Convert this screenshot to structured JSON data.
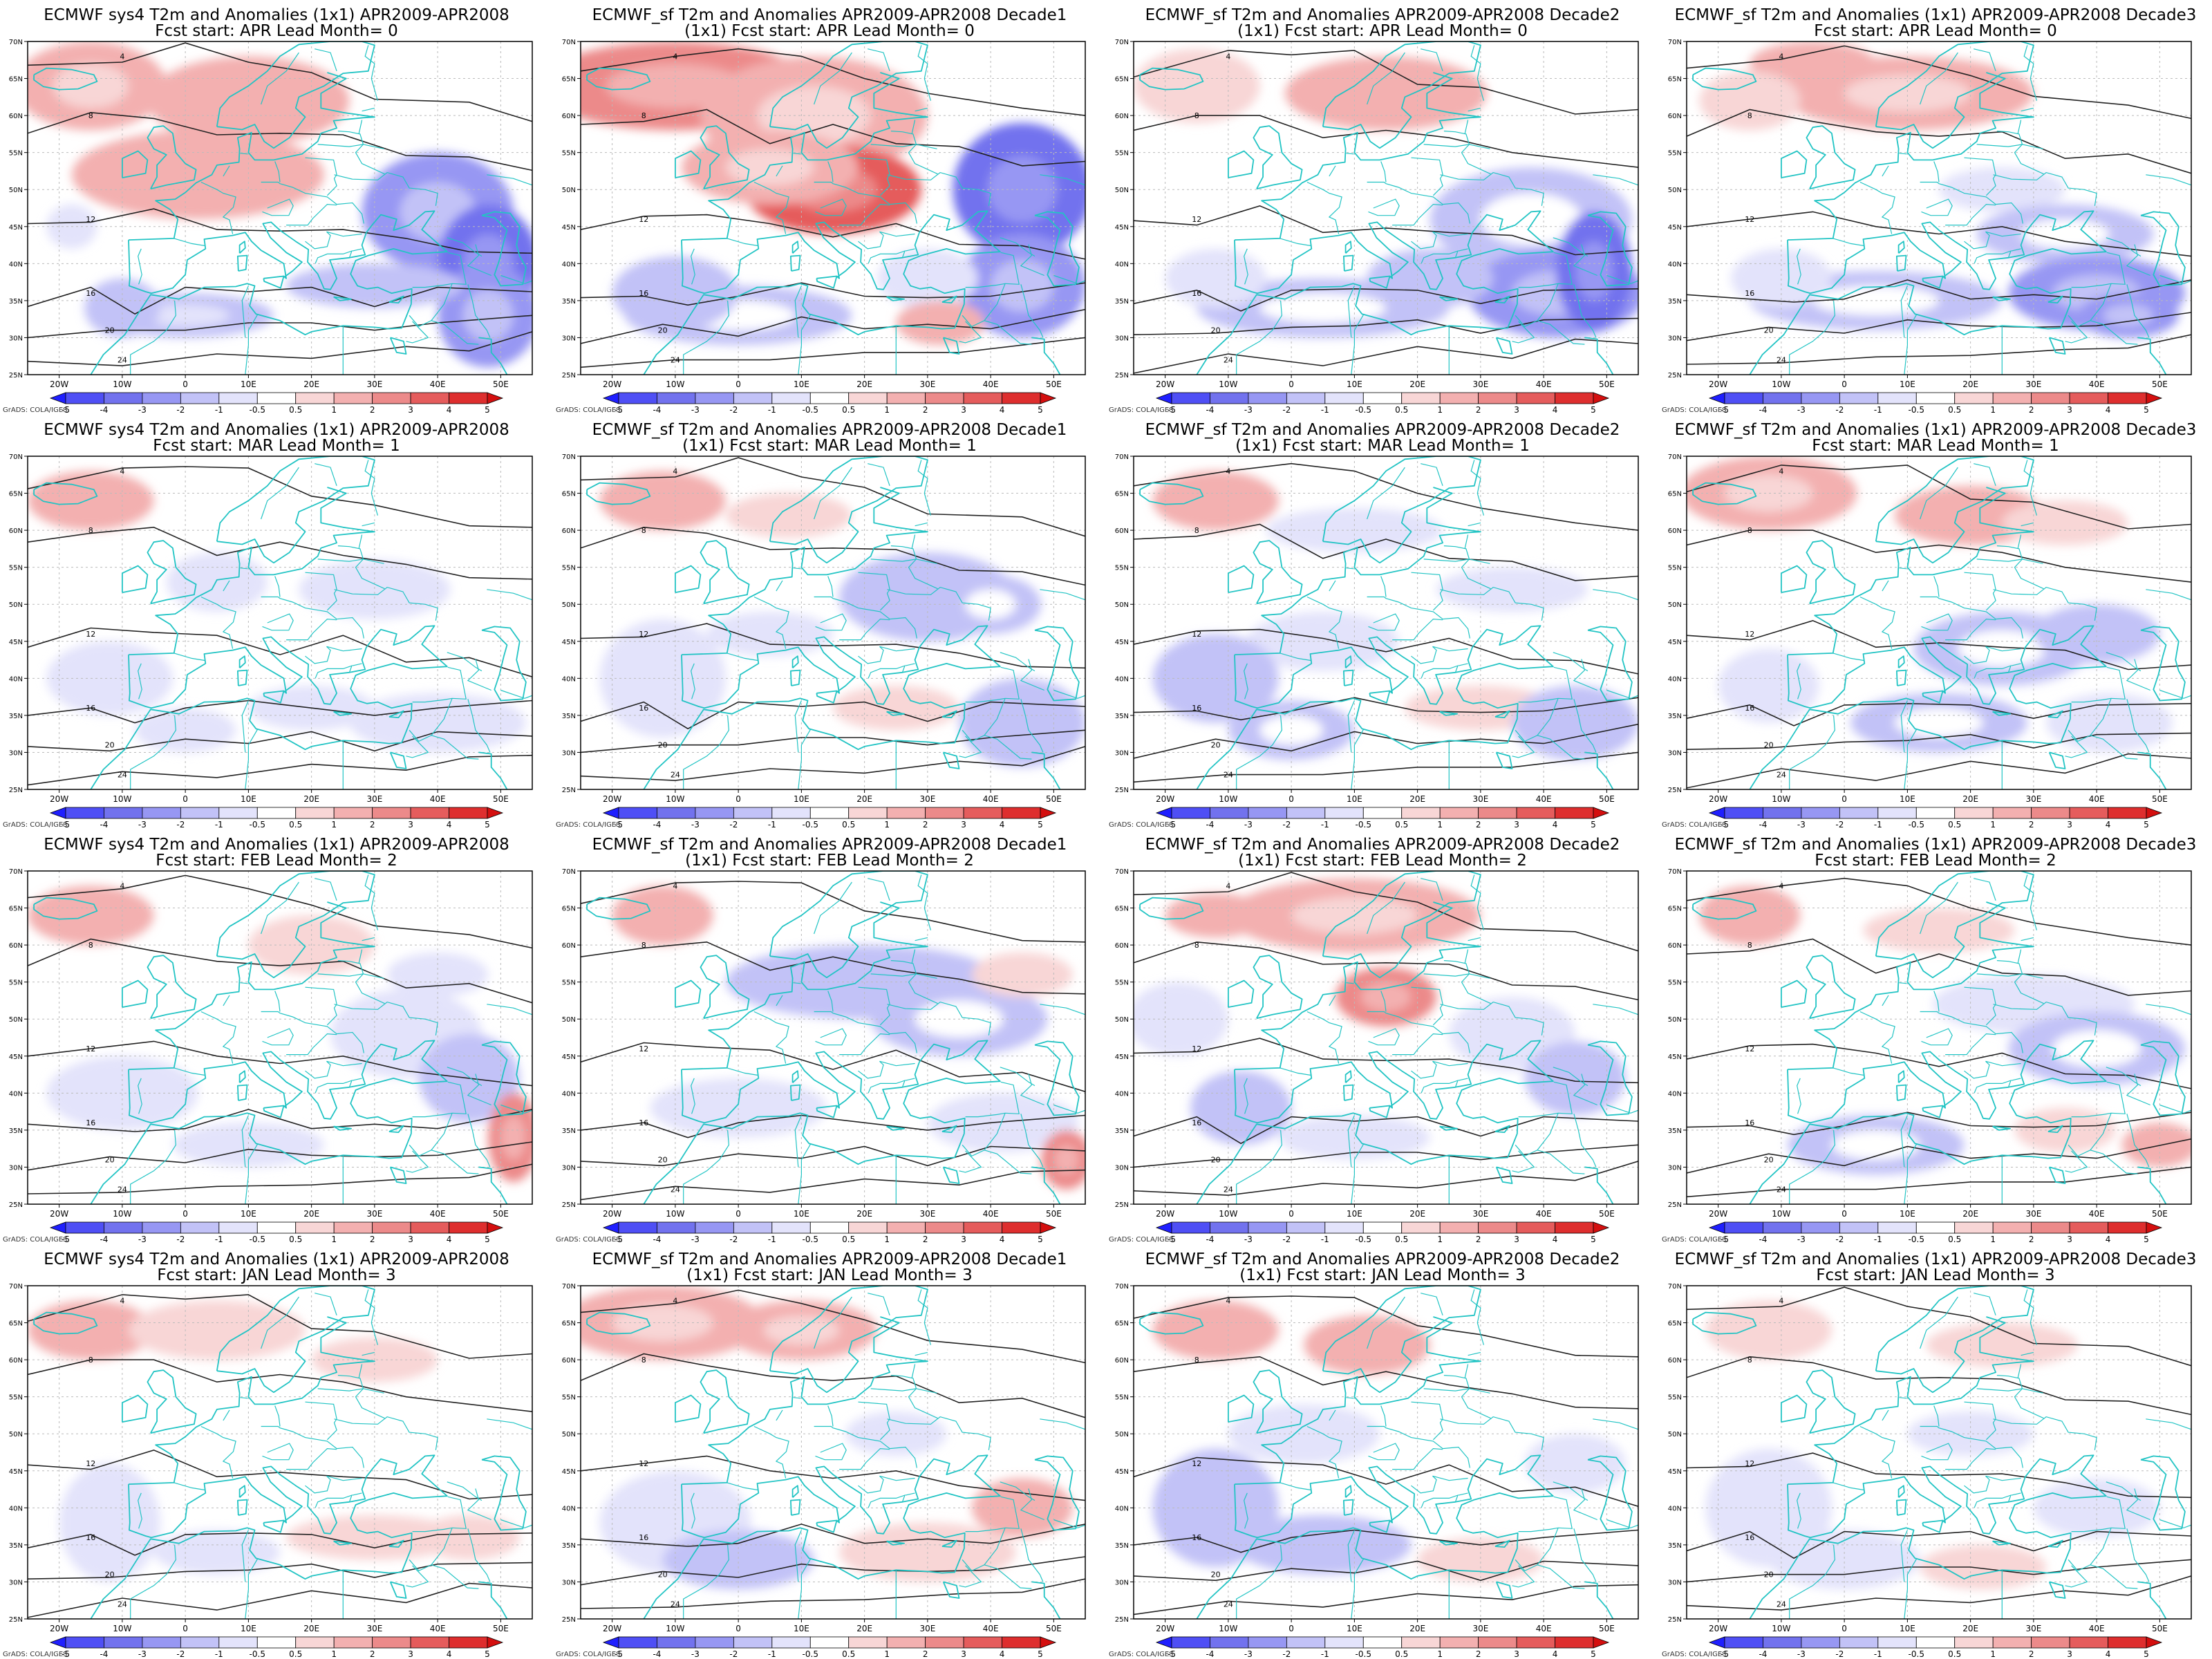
{
  "figure": {
    "credit": "GrADS: COLA/IGES",
    "lon_ticks": [
      "20W",
      "10W",
      "0",
      "10E",
      "20E",
      "30E",
      "40E",
      "50E"
    ],
    "lat_ticks": [
      "70N",
      "65N",
      "60N",
      "55N",
      "50N",
      "45N",
      "40N",
      "35N",
      "30N",
      "25N"
    ],
    "colorbar_ticks": [
      "-5",
      "-4",
      "-3",
      "-2",
      "-1",
      "-0.5",
      "0.5",
      "1",
      "2",
      "3",
      "4",
      "5"
    ],
    "colorbar_colors": [
      "#1f1fff",
      "#4f4ff5",
      "#7272ee",
      "#9797f3",
      "#c2c2f7",
      "#e3e3fb",
      "#ffffff",
      "#f8d6d6",
      "#f3b0b0",
      "#ec8a8a",
      "#e55c5c",
      "#de2e2e",
      "#d40f0f"
    ]
  },
  "panels": [
    {
      "title1": "ECMWF sys4 T2m and Anomalies (1x1) APR2009-APR2008",
      "title2": "Fcst start: APR  Lead Month= 0",
      "anom": {
        "lead": 0,
        "model": 0
      }
    },
    {
      "title1": "ECMWF_sf T2m and Anomalies APR2009-APR2008 Decade1",
      "title2": "(1x1) Fcst start: APR  Lead Month= 0",
      "anom": {
        "lead": 0,
        "model": 1
      }
    },
    {
      "title1": "ECMWF_sf T2m and Anomalies APR2009-APR2008 Decade2",
      "title2": "(1x1) Fcst start: APR  Lead Month= 0",
      "anom": {
        "lead": 0,
        "model": 2
      }
    },
    {
      "title1": "ECMWF_sf T2m and Anomalies (1x1) APR2009-APR2008 Decade3",
      "title2": "Fcst start: APR  Lead Month= 0",
      "anom": {
        "lead": 0,
        "model": 3
      }
    },
    {
      "title1": "ECMWF sys4 T2m and Anomalies (1x1) APR2009-APR2008",
      "title2": "Fcst start: MAR  Lead Month= 1",
      "anom": {
        "lead": 1,
        "model": 0
      }
    },
    {
      "title1": "ECMWF_sf T2m and Anomalies APR2009-APR2008 Decade1",
      "title2": "(1x1) Fcst start: MAR  Lead Month= 1",
      "anom": {
        "lead": 1,
        "model": 1
      }
    },
    {
      "title1": "ECMWF_sf T2m and Anomalies APR2009-APR2008 Decade2",
      "title2": "(1x1) Fcst start: MAR  Lead Month= 1",
      "anom": {
        "lead": 1,
        "model": 2
      }
    },
    {
      "title1": "ECMWF_sf T2m and Anomalies (1x1) APR2009-APR2008 Decade3",
      "title2": "Fcst start: MAR  Lead Month= 1",
      "anom": {
        "lead": 1,
        "model": 3
      }
    },
    {
      "title1": "ECMWF sys4 T2m and Anomalies (1x1) APR2009-APR2008",
      "title2": "Fcst start: FEB  Lead Month= 2",
      "anom": {
        "lead": 2,
        "model": 0
      }
    },
    {
      "title1": "ECMWF_sf T2m and Anomalies APR2009-APR2008 Decade1",
      "title2": "(1x1) Fcst start: FEB  Lead Month= 2",
      "anom": {
        "lead": 2,
        "model": 1
      }
    },
    {
      "title1": "ECMWF_sf T2m and Anomalies APR2009-APR2008 Decade2",
      "title2": "(1x1) Fcst start: FEB  Lead Month= 2",
      "anom": {
        "lead": 2,
        "model": 2
      }
    },
    {
      "title1": "ECMWF_sf T2m and Anomalies (1x1) APR2009-APR2008 Decade3",
      "title2": "Fcst start: FEB  Lead Month= 2",
      "anom": {
        "lead": 2,
        "model": 3
      }
    },
    {
      "title1": "ECMWF sys4 T2m and Anomalies (1x1) APR2009-APR2008",
      "title2": "Fcst start: JAN  Lead Month= 3",
      "anom": {
        "lead": 3,
        "model": 0
      }
    },
    {
      "title1": "ECMWF_sf T2m and Anomalies APR2009-APR2008 Decade1",
      "title2": "(1x1) Fcst start: JAN  Lead Month= 3",
      "anom": {
        "lead": 3,
        "model": 1
      }
    },
    {
      "title1": "ECMWF_sf T2m and Anomalies APR2009-APR2008 Decade2",
      "title2": "(1x1) Fcst start: JAN  Lead Month= 3",
      "anom": {
        "lead": 3,
        "model": 2
      }
    },
    {
      "title1": "ECMWF_sf T2m and Anomalies (1x1) APR2009-APR2008 Decade3",
      "title2": "Fcst start: JAN  Lead Month= 3",
      "anom": {
        "lead": 3,
        "model": 3
      }
    }
  ]
}
